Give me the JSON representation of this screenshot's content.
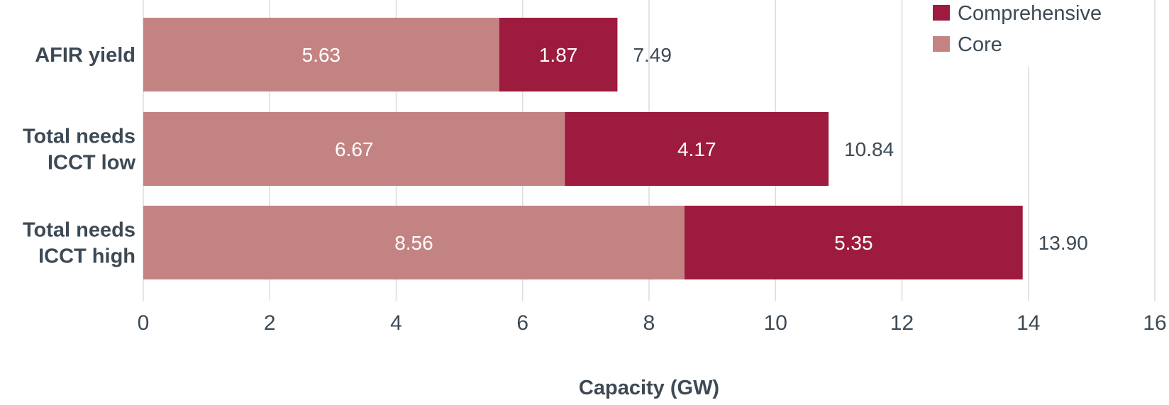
{
  "chart_data": {
    "type": "bar",
    "orientation": "horizontal",
    "stacked": true,
    "categories": [
      "AFIR yield",
      "Total needs ICCT low",
      "Total needs ICCT high"
    ],
    "category_lines": [
      [
        "AFIR yield"
      ],
      [
        "Total needs",
        "ICCT low"
      ],
      [
        "Total needs",
        "ICCT high"
      ]
    ],
    "series": [
      {
        "name": "Core",
        "values": [
          5.63,
          6.67,
          8.56
        ],
        "color": "#C48383"
      },
      {
        "name": "Comprehensive",
        "values": [
          1.87,
          4.17,
          5.35
        ],
        "color": "#9D1B3E"
      }
    ],
    "totals": [
      "7.49",
      "10.84",
      "13.90"
    ],
    "xlabel": "Capacity (GW)",
    "ylabel": "",
    "xlim": [
      0,
      16
    ],
    "xticks": [
      0,
      2,
      4,
      6,
      8,
      10,
      12,
      14,
      16
    ],
    "grid": "vertical",
    "legend": {
      "placement": "top-right",
      "entries": [
        "Comprehensive",
        "Core"
      ]
    },
    "text_color": "#3D4A55"
  }
}
